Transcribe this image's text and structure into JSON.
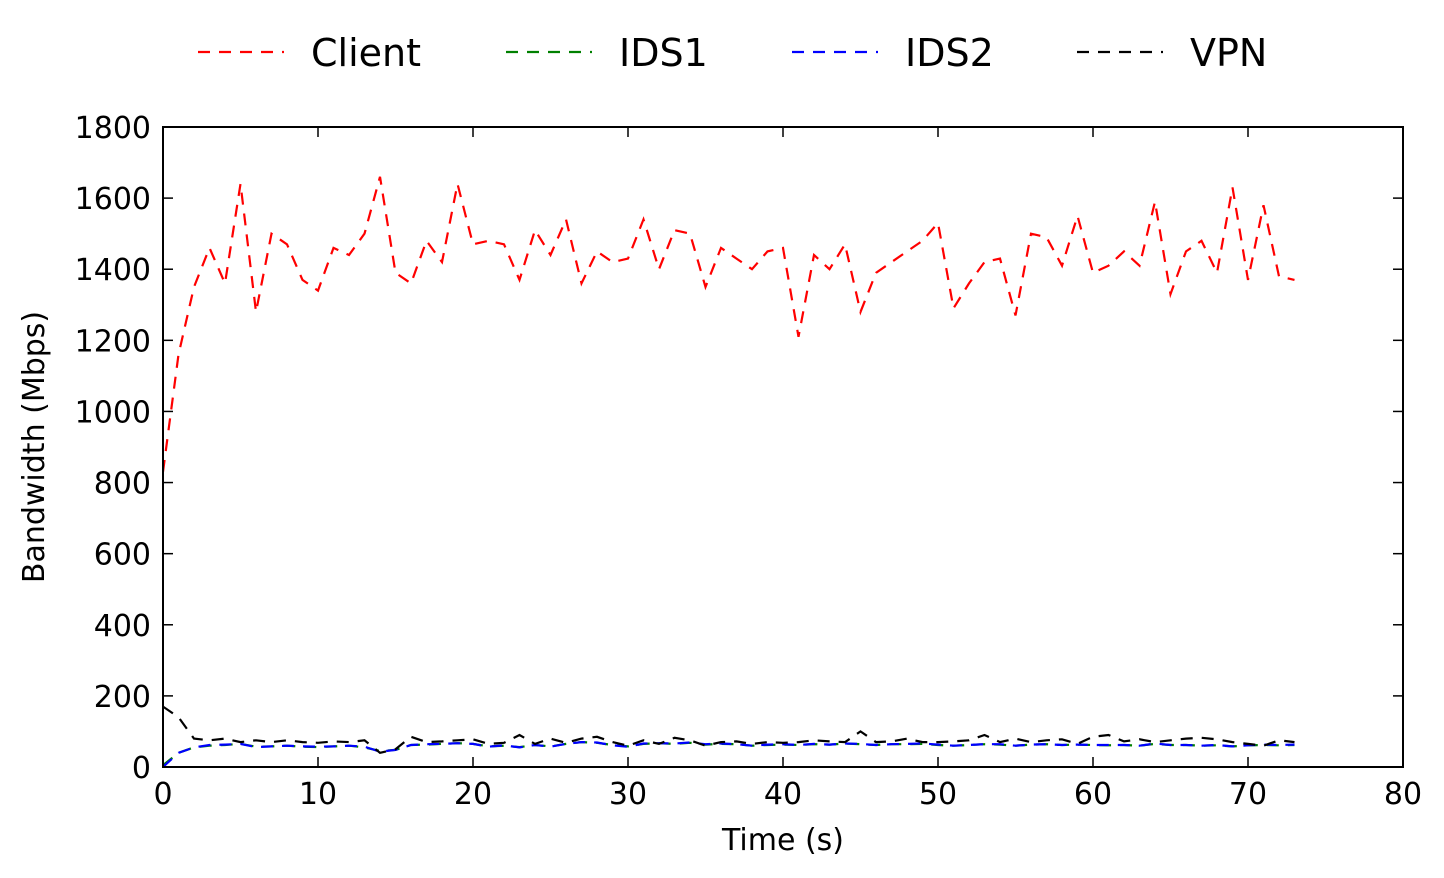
{
  "chart_data": {
    "type": "line",
    "title": "",
    "xlabel": "Time (s)",
    "ylabel": "Bandwidth (Mbps)",
    "xlim": [
      0,
      80
    ],
    "ylim": [
      0,
      1800
    ],
    "xticks": [
      0,
      10,
      20,
      30,
      40,
      50,
      60,
      70,
      80
    ],
    "yticks": [
      0,
      200,
      400,
      600,
      800,
      1000,
      1200,
      1400,
      1600,
      1800
    ],
    "grid": false,
    "legend_position": "top, above plot, single row",
    "x": [
      0,
      1,
      2,
      3,
      4,
      5,
      6,
      7,
      8,
      9,
      10,
      11,
      12,
      13,
      14,
      15,
      16,
      17,
      18,
      19,
      20,
      21,
      22,
      23,
      24,
      25,
      26,
      27,
      28,
      29,
      30,
      31,
      32,
      33,
      34,
      35,
      36,
      37,
      38,
      39,
      40,
      41,
      42,
      43,
      44,
      45,
      46,
      47,
      48,
      49,
      50,
      51,
      52,
      53,
      54,
      55,
      56,
      57,
      58,
      59,
      60,
      61,
      62,
      63,
      64,
      65,
      66,
      67,
      68,
      69,
      70,
      71,
      72,
      73
    ],
    "series": [
      {
        "name": "Client",
        "color": "#ff0000",
        "values": [
          830,
          1160,
          1350,
          1460,
          1360,
          1640,
          1280,
          1500,
          1470,
          1370,
          1340,
          1460,
          1440,
          1500,
          1660,
          1390,
          1360,
          1480,
          1420,
          1640,
          1470,
          1480,
          1470,
          1370,
          1510,
          1440,
          1540,
          1360,
          1450,
          1420,
          1430,
          1540,
          1400,
          1510,
          1500,
          1350,
          1460,
          1430,
          1400,
          1450,
          1460,
          1210,
          1440,
          1400,
          1470,
          1280,
          1390,
          1420,
          1450,
          1480,
          1530,
          1290,
          1360,
          1420,
          1430,
          1270,
          1500,
          1490,
          1410,
          1550,
          1390,
          1410,
          1450,
          1410,
          1590,
          1330,
          1450,
          1480,
          1390,
          1630,
          1370,
          1580,
          1380,
          1370
        ]
      },
      {
        "name": "IDS1",
        "color": "#008000",
        "values": [
          5,
          40,
          55,
          60,
          62,
          65,
          57,
          58,
          60,
          57,
          56,
          58,
          60,
          55,
          45,
          48,
          62,
          63,
          65,
          67,
          65,
          58,
          60,
          56,
          62,
          58,
          65,
          70,
          68,
          62,
          58,
          65,
          67,
          65,
          68,
          63,
          65,
          64,
          60,
          62,
          63,
          62,
          64,
          63,
          66,
          64,
          62,
          64,
          64,
          65,
          62,
          60,
          62,
          64,
          63,
          60,
          63,
          64,
          62,
          63,
          62,
          61,
          62,
          60,
          65,
          62,
          62,
          60,
          61,
          58,
          61,
          62,
          61,
          62
        ]
      },
      {
        "name": "IDS2",
        "color": "#0000ff",
        "values": [
          0,
          40,
          55,
          62,
          63,
          65,
          56,
          58,
          60,
          58,
          57,
          58,
          60,
          57,
          43,
          48,
          62,
          64,
          65,
          67,
          65,
          57,
          61,
          55,
          62,
          57,
          65,
          70,
          69,
          61,
          57,
          66,
          67,
          66,
          69,
          64,
          66,
          64,
          60,
          63,
          64,
          62,
          65,
          63,
          66,
          65,
          62,
          64,
          65,
          66,
          63,
          60,
          62,
          64,
          64,
          60,
          63,
          64,
          62,
          63,
          62,
          62,
          62,
          60,
          66,
          62,
          62,
          60,
          62,
          58,
          61,
          63,
          62,
          63
        ]
      },
      {
        "name": "VPN",
        "color": "#000000",
        "values": [
          170,
          140,
          80,
          75,
          80,
          70,
          75,
          70,
          75,
          70,
          68,
          72,
          70,
          75,
          40,
          50,
          85,
          70,
          72,
          75,
          78,
          65,
          68,
          90,
          65,
          80,
          68,
          80,
          85,
          70,
          60,
          75,
          65,
          82,
          75,
          60,
          70,
          72,
          65,
          70,
          68,
          70,
          75,
          72,
          70,
          100,
          70,
          72,
          80,
          70,
          70,
          72,
          75,
          90,
          70,
          80,
          70,
          75,
          78,
          65,
          85,
          90,
          72,
          78,
          70,
          75,
          80,
          82,
          78,
          70,
          65,
          60,
          75,
          70
        ]
      }
    ]
  }
}
